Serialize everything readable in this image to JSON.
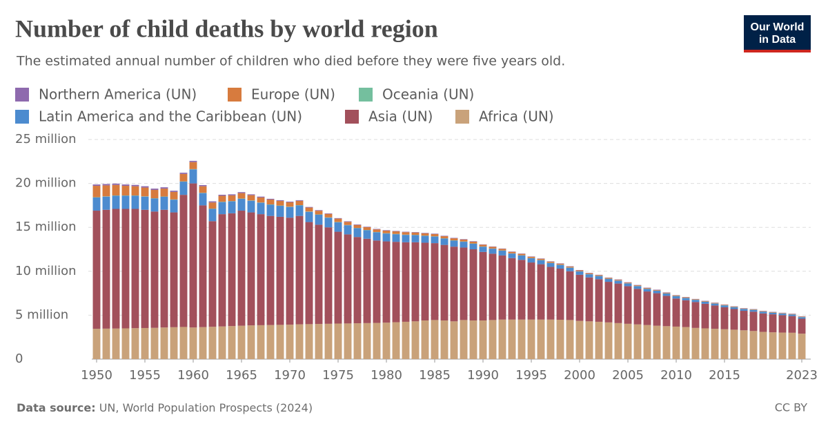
{
  "chart_data": {
    "type": "stacked-bar",
    "title": "Number of child deaths by world region",
    "subtitle": "The estimated annual number of children who died before they were five years old.",
    "logo": [
      "Our World",
      "in Data"
    ],
    "source_label": "Data source:",
    "source": "UN, World Population Prospects (2024)",
    "license": "CC BY",
    "x": [
      1950,
      1951,
      1952,
      1953,
      1954,
      1955,
      1956,
      1957,
      1958,
      1959,
      1960,
      1961,
      1962,
      1963,
      1964,
      1965,
      1966,
      1967,
      1968,
      1969,
      1970,
      1971,
      1972,
      1973,
      1974,
      1975,
      1976,
      1977,
      1978,
      1979,
      1980,
      1981,
      1982,
      1983,
      1984,
      1985,
      1986,
      1987,
      1988,
      1989,
      1990,
      1991,
      1992,
      1993,
      1994,
      1995,
      1996,
      1997,
      1998,
      1999,
      2000,
      2001,
      2002,
      2003,
      2004,
      2005,
      2006,
      2007,
      2008,
      2009,
      2010,
      2011,
      2012,
      2013,
      2014,
      2015,
      2016,
      2017,
      2018,
      2019,
      2020,
      2021,
      2022,
      2023
    ],
    "xlim": [
      1949.5,
      2023.5
    ],
    "xticks": [
      1950,
      1955,
      1960,
      1965,
      1970,
      1975,
      1980,
      1985,
      1990,
      1995,
      2000,
      2005,
      2010,
      2015,
      2023
    ],
    "ylim": [
      0,
      25
    ],
    "yticks": [
      0,
      {
        "value": 5,
        "label": "5 million"
      },
      {
        "value": 10,
        "label": "10 million"
      },
      {
        "value": 15,
        "label": "15 million"
      },
      {
        "value": 20,
        "label": "20 million"
      },
      {
        "value": 25,
        "label": "25 million"
      }
    ],
    "grid": true,
    "series": [
      {
        "name": "Northern America (UN)",
        "color": "#8e6aae",
        "values": [
          0.15,
          0.15,
          0.15,
          0.15,
          0.15,
          0.15,
          0.15,
          0.15,
          0.14,
          0.14,
          0.14,
          0.13,
          0.13,
          0.12,
          0.12,
          0.11,
          0.1,
          0.1,
          0.09,
          0.09,
          0.08,
          0.08,
          0.07,
          0.07,
          0.06,
          0.06,
          0.06,
          0.06,
          0.05,
          0.05,
          0.05,
          0.05,
          0.05,
          0.05,
          0.05,
          0.05,
          0.05,
          0.05,
          0.05,
          0.05,
          0.04,
          0.04,
          0.04,
          0.04,
          0.04,
          0.04,
          0.04,
          0.04,
          0.04,
          0.04,
          0.04,
          0.04,
          0.04,
          0.04,
          0.04,
          0.04,
          0.04,
          0.04,
          0.04,
          0.04,
          0.03,
          0.03,
          0.03,
          0.03,
          0.03,
          0.03,
          0.03,
          0.03,
          0.03,
          0.03,
          0.03,
          0.03,
          0.03,
          0.03
        ]
      },
      {
        "name": "Europe (UN)",
        "color": "#d77b3e",
        "values": [
          1.3,
          1.25,
          1.2,
          1.1,
          1.05,
          1.0,
          0.95,
          0.9,
          0.85,
          0.85,
          0.8,
          0.75,
          0.7,
          0.68,
          0.65,
          0.62,
          0.6,
          0.57,
          0.55,
          0.52,
          0.5,
          0.48,
          0.45,
          0.42,
          0.4,
          0.38,
          0.36,
          0.34,
          0.32,
          0.3,
          0.3,
          0.29,
          0.28,
          0.27,
          0.26,
          0.25,
          0.24,
          0.23,
          0.22,
          0.21,
          0.2,
          0.19,
          0.18,
          0.17,
          0.16,
          0.15,
          0.14,
          0.13,
          0.12,
          0.11,
          0.1,
          0.1,
          0.09,
          0.09,
          0.09,
          0.08,
          0.08,
          0.08,
          0.07,
          0.07,
          0.07,
          0.07,
          0.06,
          0.06,
          0.06,
          0.06,
          0.06,
          0.05,
          0.05,
          0.05,
          0.05,
          0.05,
          0.05,
          0.05
        ]
      },
      {
        "name": "Oceania (UN)",
        "color": "#74bf9e",
        "values": [
          0.03,
          0.03,
          0.03,
          0.03,
          0.03,
          0.03,
          0.03,
          0.03,
          0.03,
          0.03,
          0.03,
          0.03,
          0.03,
          0.03,
          0.03,
          0.03,
          0.03,
          0.03,
          0.03,
          0.03,
          0.03,
          0.03,
          0.03,
          0.03,
          0.03,
          0.03,
          0.03,
          0.03,
          0.03,
          0.03,
          0.03,
          0.03,
          0.03,
          0.03,
          0.03,
          0.03,
          0.03,
          0.03,
          0.03,
          0.03,
          0.02,
          0.02,
          0.02,
          0.02,
          0.02,
          0.02,
          0.02,
          0.02,
          0.02,
          0.02,
          0.02,
          0.02,
          0.02,
          0.02,
          0.02,
          0.02,
          0.02,
          0.02,
          0.02,
          0.02,
          0.02,
          0.02,
          0.02,
          0.02,
          0.02,
          0.02,
          0.02,
          0.02,
          0.02,
          0.02,
          0.02,
          0.02,
          0.02,
          0.02
        ]
      },
      {
        "name": "Latin America and the Caribbean (UN)",
        "color": "#4c8bcf",
        "values": [
          1.5,
          1.5,
          1.5,
          1.5,
          1.5,
          1.5,
          1.48,
          1.48,
          1.45,
          1.5,
          1.6,
          1.4,
          1.4,
          1.38,
          1.36,
          1.35,
          1.33,
          1.3,
          1.28,
          1.25,
          1.22,
          1.2,
          1.17,
          1.14,
          1.1,
          1.08,
          1.04,
          1.0,
          0.97,
          0.94,
          0.9,
          0.87,
          0.84,
          0.81,
          0.78,
          0.75,
          0.72,
          0.69,
          0.66,
          0.63,
          0.6,
          0.57,
          0.55,
          0.52,
          0.5,
          0.48,
          0.46,
          0.44,
          0.42,
          0.4,
          0.38,
          0.36,
          0.35,
          0.33,
          0.32,
          0.31,
          0.3,
          0.29,
          0.28,
          0.27,
          0.27,
          0.25,
          0.24,
          0.23,
          0.22,
          0.21,
          0.21,
          0.2,
          0.2,
          0.19,
          0.18,
          0.18,
          0.17,
          0.17
        ]
      },
      {
        "name": "Asia (UN)",
        "color": "#a2505b",
        "values": [
          13.45,
          13.53,
          13.62,
          13.6,
          13.58,
          13.46,
          13.24,
          13.4,
          13.07,
          15.04,
          16.4,
          13.86,
          12.02,
          12.78,
          12.84,
          13.1,
          12.86,
          12.64,
          12.42,
          12.3,
          12.18,
          12.34,
          11.62,
          11.3,
          10.98,
          10.45,
          10.14,
          9.82,
          9.6,
          9.38,
          9.25,
          9.15,
          9.05,
          9.0,
          8.85,
          8.75,
          8.6,
          8.5,
          8.25,
          8.1,
          7.8,
          7.55,
          7.3,
          7.0,
          6.8,
          6.5,
          6.3,
          6.0,
          5.82,
          5.55,
          5.25,
          5.0,
          4.85,
          4.62,
          4.5,
          4.28,
          4.05,
          3.82,
          3.7,
          3.45,
          3.2,
          3.05,
          2.95,
          2.8,
          2.65,
          2.5,
          2.35,
          2.22,
          2.2,
          2.1,
          2.05,
          1.98,
          1.9,
          1.7
        ]
      },
      {
        "name": "Africa (UN)",
        "color": "#c9a27a",
        "values": [
          3.45,
          3.47,
          3.48,
          3.5,
          3.52,
          3.54,
          3.56,
          3.6,
          3.63,
          3.66,
          3.6,
          3.64,
          3.68,
          3.72,
          3.76,
          3.8,
          3.84,
          3.86,
          3.88,
          3.9,
          3.92,
          3.96,
          3.98,
          4.0,
          4.02,
          4.05,
          4.06,
          4.08,
          4.1,
          4.12,
          4.15,
          4.2,
          4.25,
          4.3,
          4.4,
          4.45,
          4.4,
          4.3,
          4.45,
          4.4,
          4.4,
          4.45,
          4.5,
          4.5,
          4.5,
          4.5,
          4.5,
          4.5,
          4.48,
          4.45,
          4.35,
          4.3,
          4.25,
          4.18,
          4.1,
          4.02,
          3.95,
          3.88,
          3.8,
          3.75,
          3.7,
          3.65,
          3.55,
          3.5,
          3.45,
          3.4,
          3.35,
          3.28,
          3.2,
          3.1,
          3.05,
          3.02,
          3.0,
          2.9
        ]
      }
    ]
  }
}
